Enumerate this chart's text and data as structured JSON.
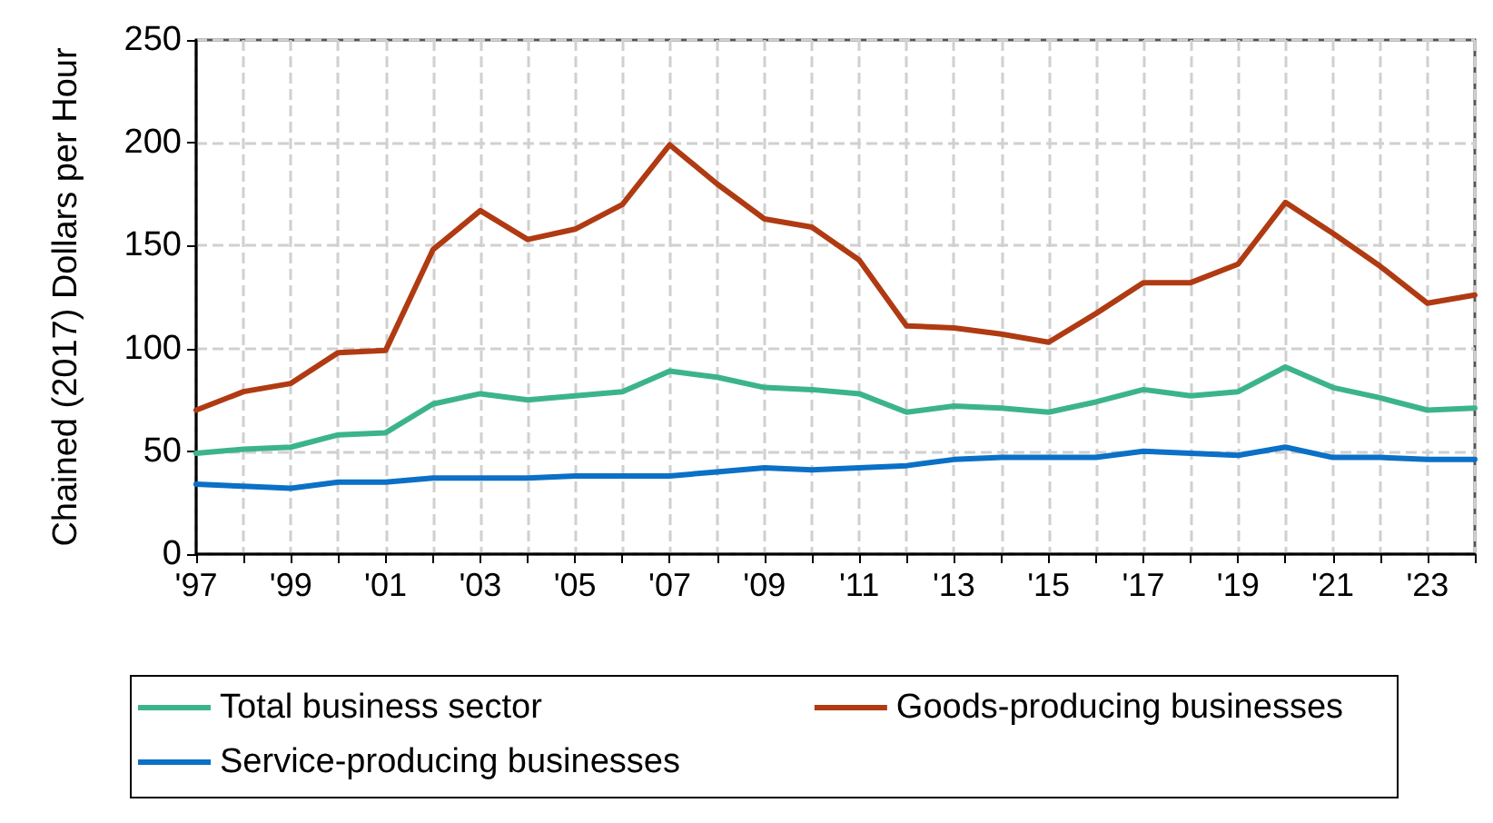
{
  "chart_data": {
    "type": "line",
    "ylabel": "Chained (2017) Dollars per Hour",
    "categories": [
      "'97",
      null,
      "'99",
      null,
      "'01",
      null,
      "'03",
      null,
      "'05",
      null,
      "'07",
      null,
      "'09",
      null,
      "'11",
      null,
      "'13",
      null,
      "'15",
      null,
      "'17",
      null,
      "'19",
      null,
      "'21",
      null,
      "'23",
      null
    ],
    "series": [
      {
        "name": "Total business sector",
        "color": "#3cb48a",
        "values": [
          49,
          51,
          52,
          58,
          59,
          73,
          78,
          75,
          77,
          79,
          89,
          86,
          81,
          80,
          78,
          69,
          72,
          71,
          69,
          74,
          80,
          77,
          79,
          91,
          81,
          76,
          70,
          71
        ]
      },
      {
        "name": "Goods-producing businesses",
        "color": "#b03a12",
        "values": [
          70,
          79,
          83,
          98,
          99,
          148,
          167,
          153,
          158,
          170,
          199,
          180,
          163,
          159,
          143,
          111,
          110,
          107,
          103,
          117,
          132,
          132,
          141,
          171,
          156,
          140,
          122,
          126
        ]
      },
      {
        "name": "Service-producing businesses",
        "color": "#0b70c6",
        "values": [
          34,
          33,
          32,
          35,
          35,
          37,
          37,
          37,
          38,
          38,
          38,
          40,
          42,
          41,
          42,
          43,
          46,
          47,
          47,
          47,
          50,
          49,
          48,
          52,
          47,
          47,
          46,
          46
        ]
      }
    ],
    "ylim": [
      0,
      250
    ],
    "yticks": [
      0,
      50,
      100,
      150,
      200,
      250
    ],
    "grid": true,
    "legend": "bottom",
    "marker": "none",
    "line_style": "solid"
  }
}
